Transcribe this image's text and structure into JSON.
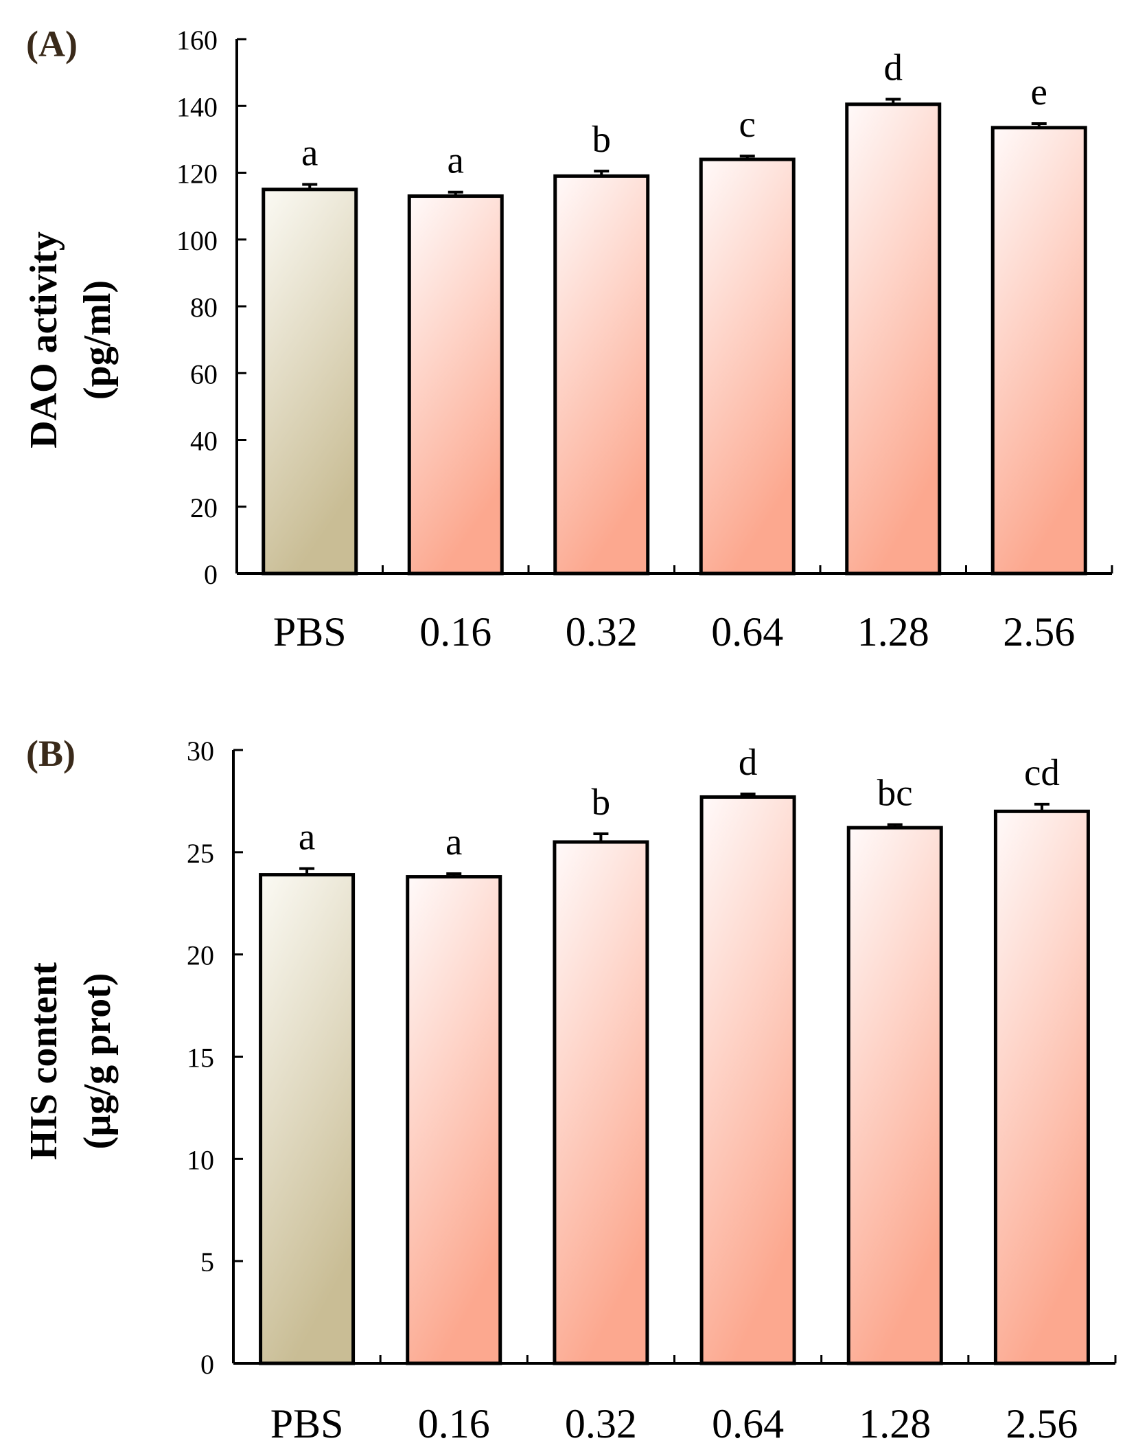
{
  "chart_data": [
    {
      "type": "bar",
      "panel_label": "(A)",
      "ylabel_line1": "DAO activity",
      "ylabel_line2": "(pg/ml)",
      "xlabel": "",
      "categories": [
        "PBS",
        "0.16",
        "0.32",
        "0.64",
        "1.28",
        "2.56"
      ],
      "values": [
        115,
        113,
        119,
        124,
        140.5,
        133.5
      ],
      "errors": [
        1.5,
        1.2,
        1.5,
        1.0,
        1.5,
        1.2
      ],
      "significance": [
        "a",
        "a",
        "b",
        "c",
        "d",
        "e"
      ],
      "ylim": [
        0,
        160
      ],
      "yticks": [
        "0",
        "20",
        "40",
        "60",
        "80",
        "100",
        "120",
        "140",
        "160"
      ],
      "colors": {
        "control_top": "#fbfaf4",
        "control_bottom": "#c9bd95",
        "treatment_top": "#fffafa",
        "treatment_bottom": "#fca88f"
      }
    },
    {
      "type": "bar",
      "panel_label": "(B)",
      "ylabel_line1": "HIS content",
      "ylabel_line2": "(µg/g prot)",
      "xlabel": "",
      "categories": [
        "PBS",
        "0.16",
        "0.32",
        "0.64",
        "1.28",
        "2.56"
      ],
      "values": [
        23.9,
        23.8,
        25.5,
        27.7,
        26.2,
        27.0
      ],
      "errors": [
        0.3,
        0.15,
        0.4,
        0.15,
        0.15,
        0.35
      ],
      "significance": [
        "a",
        "a",
        "b",
        "d",
        "bc",
        "cd"
      ],
      "ylim": [
        0,
        30
      ],
      "yticks": [
        "0",
        "5",
        "10",
        "15",
        "20",
        "25",
        "30"
      ],
      "colors": {
        "control_top": "#fbfaf4",
        "control_bottom": "#c9bd95",
        "treatment_top": "#fffafa",
        "treatment_bottom": "#fca88f"
      }
    }
  ]
}
